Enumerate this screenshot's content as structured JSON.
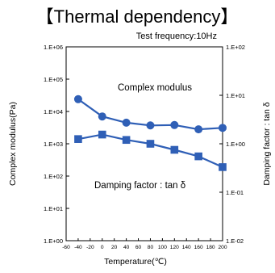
{
  "chart_data": {
    "type": "line",
    "title": "【Thermal dependency】",
    "subtitle": "Test frequency:10Hz",
    "xlabel": "Temperature(℃)",
    "ylabel_left": "Complex modulus(Pa)",
    "ylabel_right": "Damping factor : tan δ",
    "x_ticks": [
      -60,
      -40,
      -20,
      0,
      20,
      40,
      60,
      80,
      100,
      120,
      140,
      160,
      180,
      200
    ],
    "x_tick_labels": [
      "-60",
      "-40",
      "-20",
      "0",
      "20",
      "40",
      "60",
      "80",
      "100",
      "120",
      "140",
      "160",
      "180",
      "200"
    ],
    "xlim": [
      -60,
      200
    ],
    "y_left_ticks": [
      "1.E+00",
      "1.E+01",
      "1.E+02",
      "1.E+03",
      "1.E+04",
      "1.E+05",
      "1.E+06"
    ],
    "y_left_lim": [
      1,
      1000000
    ],
    "y_left_scale": "log",
    "y_right_ticks": [
      "1.E-02",
      "1.E-01",
      "1.E+00",
      "1.E+01",
      "1.E+02"
    ],
    "y_right_lim": [
      0.01,
      100
    ],
    "y_right_scale": "log",
    "grid": false,
    "series": [
      {
        "name": "Complex modulus",
        "axis": "left",
        "marker": "circle",
        "color": "#2f5fb6",
        "x": [
          -40,
          0,
          40,
          80,
          120,
          160,
          200
        ],
        "y": [
          24000,
          7000,
          4500,
          3700,
          3800,
          2800,
          3100
        ]
      },
      {
        "name": "Damping factor : tan δ",
        "axis": "right",
        "marker": "square",
        "color": "#2f5fb6",
        "x": [
          -40,
          0,
          40,
          80,
          120,
          160,
          200
        ],
        "y": [
          1.25,
          1.55,
          1.2,
          1.0,
          0.75,
          0.55,
          0.33
        ]
      }
    ]
  }
}
